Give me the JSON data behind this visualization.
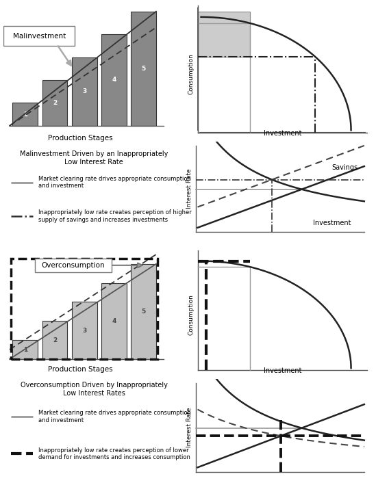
{
  "bg_color": "#ffffff",
  "legend_bg": "#e8e8e8",
  "bar_color_mal": "#888888",
  "bar_color_over": "#c0c0c0",
  "bar_edge": "#333333",
  "line_dark": "#222222",
  "line_gray": "#999999",
  "prod_stages_label": "Production Stages",
  "consumption_label": "Consumption",
  "investment_label": "Investment",
  "interest_rate_label": "Interest Rate",
  "savings_label": "Savings",
  "malinvestment_label": "Malinvestment",
  "overconsumption_label": "Overconsumption",
  "mal_title": "Malinvestment Driven by an Inappropriately\nLow Interest Rate",
  "over_title": "Overconsumption Driven by Inappropriately\nLow Interest Rates",
  "leg1_line1": "Market clearing rate drives appropriate consumption\nand investment",
  "leg1_line2": "Inappropriately low rate creates perception of higher\nsupply of savings and increases investments",
  "leg2_line1": "Market clearing rate drives appropriate consumption\nand investment",
  "leg2_line2": "Inappropriately low rate creates perception of lower\ndemand for investments and increases consumption"
}
